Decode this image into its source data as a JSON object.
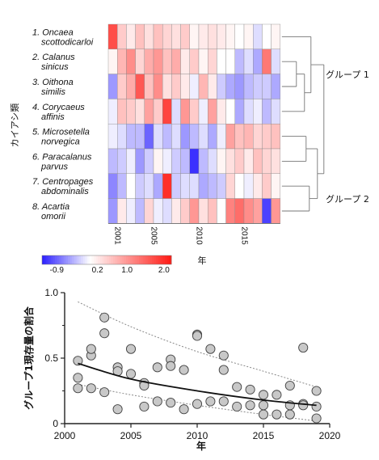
{
  "chart_data": [
    {
      "type": "heatmap",
      "ylabel": "カイアシ類",
      "xlabel": "年",
      "x_ticks": [
        "2001",
        "2005",
        "2010",
        "2015"
      ],
      "rows": [
        {
          "num": "1.",
          "genus": "Oncaea",
          "species": "scottodicarloi"
        },
        {
          "num": "2.",
          "genus": "Calanus",
          "species": "sinicus"
        },
        {
          "num": "3.",
          "genus": "Oithona",
          "species": "similis"
        },
        {
          "num": "4.",
          "genus": "Corycaeus",
          "species": "affinis"
        },
        {
          "num": "5.",
          "genus": "Microsetella",
          "species": "norvegica"
        },
        {
          "num": "6.",
          "genus": "Paracalanus",
          "species": "parvus"
        },
        {
          "num": "7.",
          "genus": "Centropages",
          "species": "abdominalis"
        },
        {
          "num": "8.",
          "genus": "Acartia",
          "species": "omorii"
        }
      ],
      "years": [
        2001,
        2002,
        2003,
        2004,
        2005,
        2006,
        2007,
        2008,
        2009,
        2010,
        2011,
        2012,
        2013,
        2014,
        2015,
        2016,
        2017,
        2018,
        2019
      ],
      "values": [
        [
          1.7,
          0.5,
          0.2,
          0.6,
          0.3,
          0.6,
          0.4,
          0.3,
          0.5,
          0.1,
          0.2,
          0.3,
          0.2,
          0.1,
          0.0,
          0.1,
          -0.2,
          0.0,
          0.1
        ],
        [
          0.1,
          0.7,
          1.1,
          0.4,
          0.8,
          1.0,
          0.6,
          0.8,
          0.2,
          0.5,
          0.1,
          0.4,
          0.0,
          0.0,
          -0.4,
          -0.2,
          -0.5,
          1.3,
          -0.2
        ],
        [
          -0.6,
          0.5,
          0.8,
          1.6,
          0.6,
          1.1,
          0.3,
          0.5,
          0.2,
          -0.1,
          0.7,
          0.2,
          -0.3,
          -0.5,
          -0.6,
          -0.4,
          -0.3,
          -0.3,
          -0.5
        ],
        [
          -0.1,
          0.6,
          0.5,
          0.3,
          0.9,
          0.5,
          1.8,
          -0.2,
          1.0,
          0.5,
          -0.1,
          0.9,
          0.2,
          0.0,
          -0.5,
          -0.2,
          -0.1,
          -0.4,
          -0.2
        ],
        [
          -0.1,
          -0.2,
          -0.4,
          -0.4,
          -0.9,
          -0.2,
          -0.4,
          -0.2,
          -0.6,
          -0.4,
          -0.2,
          -0.5,
          -0.1,
          0.9,
          0.6,
          0.7,
          0.4,
          0.5,
          0.6
        ],
        [
          -0.4,
          -0.3,
          -0.1,
          -0.6,
          -0.3,
          0.1,
          -0.1,
          -0.3,
          -0.4,
          -1.2,
          -0.4,
          -0.2,
          0.1,
          0.3,
          0.5,
          0.2,
          0.6,
          0.4,
          0.3
        ],
        [
          -0.7,
          -0.4,
          0.0,
          -0.3,
          -0.2,
          -0.5,
          2.0,
          -0.3,
          -0.2,
          -0.2,
          -0.5,
          -0.4,
          -0.3,
          0.4,
          0.0,
          -0.1,
          0.2,
          0.5,
          0.1
        ],
        [
          -0.6,
          0.2,
          -0.1,
          -0.4,
          0.4,
          -0.1,
          -0.2,
          0.2,
          0.5,
          1.0,
          0.3,
          0.6,
          0.0,
          1.2,
          1.4,
          1.1,
          0.9,
          -1.1,
          1.0
        ]
      ],
      "color_scale": {
        "ticks": [
          "-0.9",
          "0.2",
          "1.0",
          "2.0"
        ],
        "min_color": "#2b1fff",
        "mid_color": "#ffffff",
        "max_color": "#ff1a14",
        "range": [
          -1.3,
          2.2
        ]
      },
      "dendrogram_groups": [
        {
          "label": "グループ 1",
          "rows": [
            1,
            2,
            3,
            4
          ]
        },
        {
          "label": "グループ 2",
          "rows": [
            5,
            6,
            7,
            8
          ]
        }
      ]
    },
    {
      "type": "scatter",
      "xlabel": "年",
      "ylabel": "グループ1現存量の割合",
      "xlim": [
        2000,
        2020
      ],
      "ylim": [
        0,
        1.0
      ],
      "x_ticks": [
        "2000",
        "2005",
        "2010",
        "2015",
        "2020"
      ],
      "y_ticks": [
        "0",
        "0.5",
        "1.0"
      ],
      "point_color": "#c8c8c8",
      "points": [
        [
          2001,
          0.48
        ],
        [
          2001,
          0.35
        ],
        [
          2001,
          0.27
        ],
        [
          2002,
          0.52
        ],
        [
          2002,
          0.57
        ],
        [
          2002,
          0.27
        ],
        [
          2003,
          0.81
        ],
        [
          2003,
          0.69
        ],
        [
          2003,
          0.24
        ],
        [
          2004,
          0.43
        ],
        [
          2004,
          0.4
        ],
        [
          2004,
          0.11
        ],
        [
          2005,
          0.57
        ],
        [
          2005,
          0.38
        ],
        [
          2006,
          0.31
        ],
        [
          2006,
          0.29
        ],
        [
          2006,
          0.13
        ],
        [
          2007,
          0.43
        ],
        [
          2007,
          0.17
        ],
        [
          2008,
          0.49
        ],
        [
          2008,
          0.44
        ],
        [
          2008,
          0.16
        ],
        [
          2009,
          0.41
        ],
        [
          2009,
          0.11
        ],
        [
          2010,
          0.68
        ],
        [
          2010,
          0.67
        ],
        [
          2010,
          0.15
        ],
        [
          2011,
          0.57
        ],
        [
          2011,
          0.17
        ],
        [
          2012,
          0.52
        ],
        [
          2012,
          0.41
        ],
        [
          2012,
          0.17
        ],
        [
          2013,
          0.28
        ],
        [
          2013,
          0.13
        ],
        [
          2014,
          0.26
        ],
        [
          2014,
          0.14
        ],
        [
          2015,
          0.22
        ],
        [
          2015,
          0.14
        ],
        [
          2015,
          0.07
        ],
        [
          2016,
          0.22
        ],
        [
          2016,
          0.07
        ],
        [
          2017,
          0.29
        ],
        [
          2017,
          0.14
        ],
        [
          2017,
          0.07
        ],
        [
          2018,
          0.58
        ],
        [
          2018,
          0.15
        ],
        [
          2018,
          0.14
        ],
        [
          2019,
          0.25
        ],
        [
          2019,
          0.13
        ],
        [
          2019,
          0.04
        ]
      ],
      "fit_curve": [
        [
          2001,
          0.46
        ],
        [
          2005,
          0.34
        ],
        [
          2010,
          0.25
        ],
        [
          2015,
          0.18
        ],
        [
          2019,
          0.14
        ]
      ],
      "upper_ci": [
        [
          2001,
          0.93
        ],
        [
          2005,
          0.74
        ],
        [
          2010,
          0.55
        ],
        [
          2015,
          0.4
        ],
        [
          2019,
          0.28
        ]
      ],
      "lower_ci": [
        [
          2001,
          0.3
        ],
        [
          2005,
          0.22
        ],
        [
          2010,
          0.14
        ],
        [
          2015,
          0.07
        ],
        [
          2019,
          0.02
        ]
      ]
    }
  ]
}
